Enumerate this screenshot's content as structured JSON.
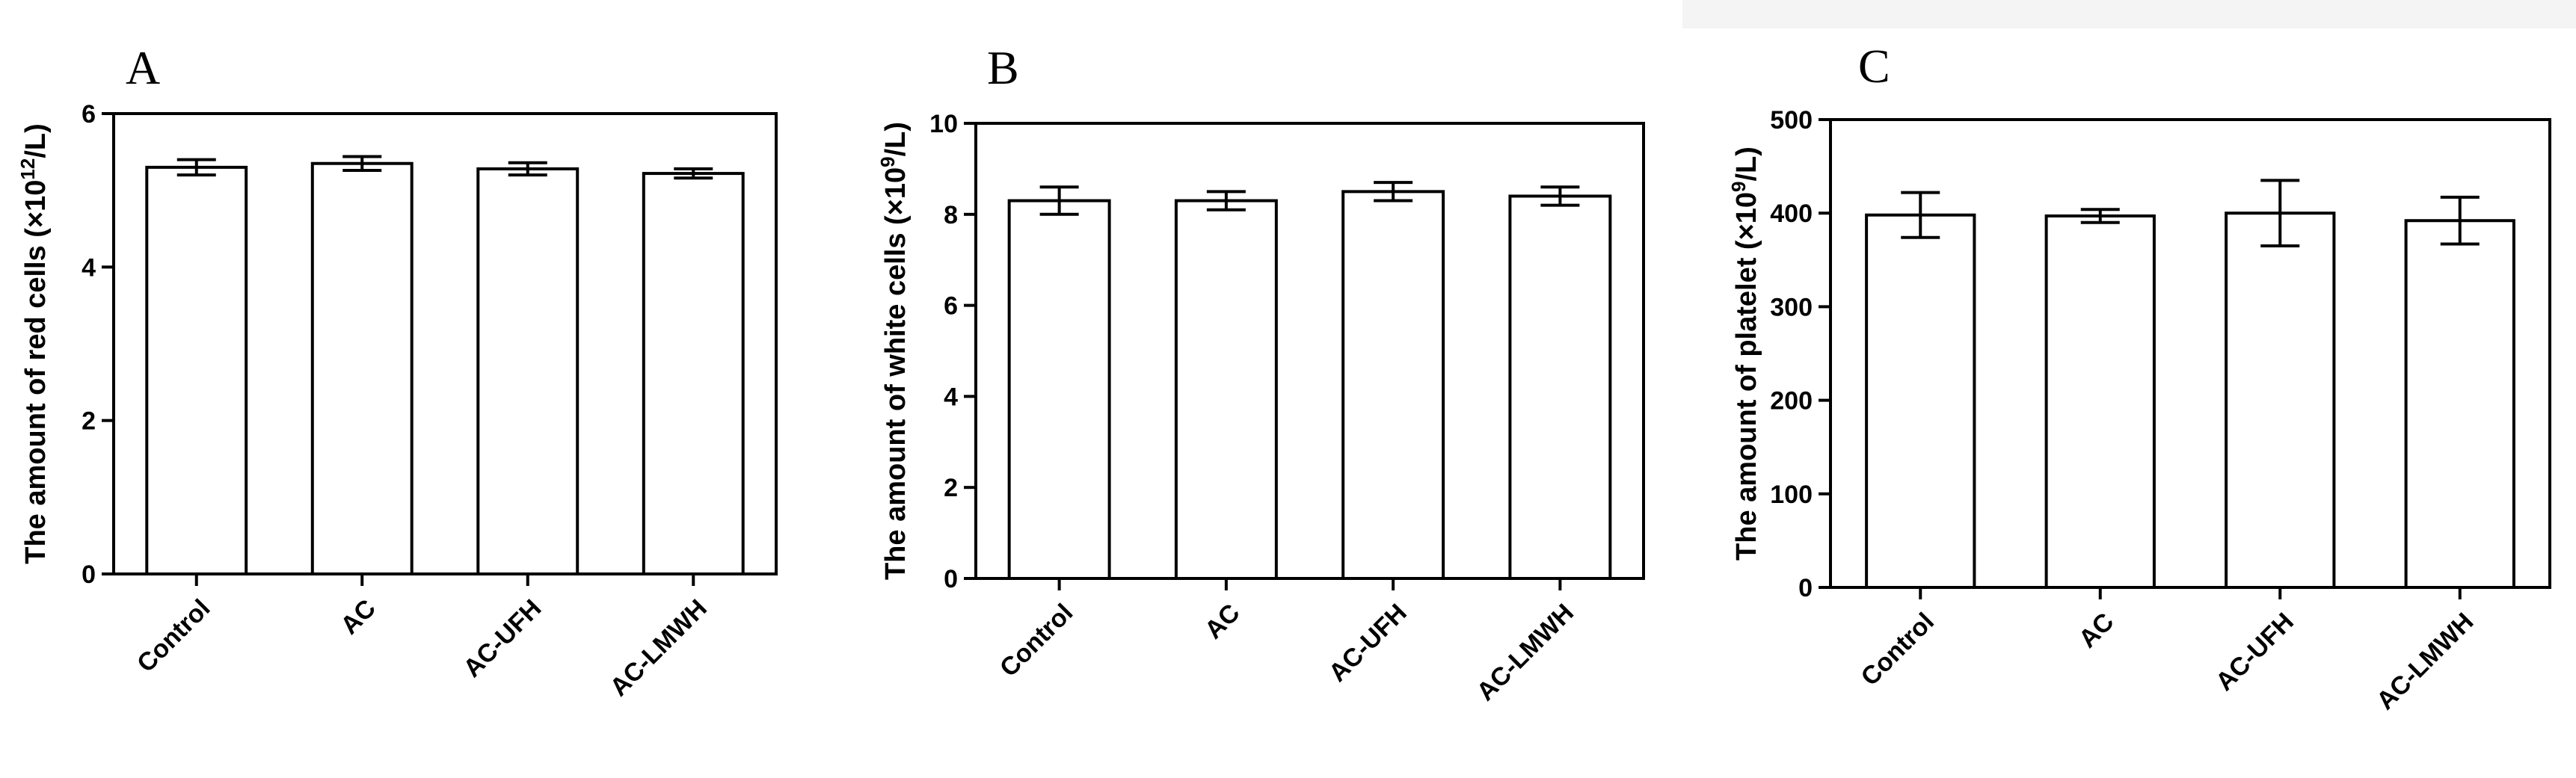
{
  "chart_data": [
    {
      "type": "bar",
      "panel": "A",
      "categories": [
        "Control",
        "AC",
        "AC-UFH",
        "AC-LMWH"
      ],
      "values": [
        5.3,
        5.35,
        5.28,
        5.22
      ],
      "errors": [
        0.1,
        0.09,
        0.08,
        0.06
      ],
      "ylabel_main": "The amount of red cells (×10",
      "ylabel_sup": "12",
      "ylabel_tail": "/L)",
      "ylim": [
        0,
        6
      ],
      "yticks": [
        0,
        2,
        4,
        6
      ],
      "grid": false
    },
    {
      "type": "bar",
      "panel": "B",
      "categories": [
        "Control",
        "AC",
        "AC-UFH",
        "AC-LMWH"
      ],
      "values": [
        8.3,
        8.3,
        8.5,
        8.4
      ],
      "errors": [
        0.3,
        0.2,
        0.2,
        0.2
      ],
      "ylabel_main": "The amount of white cells (×10",
      "ylabel_sup": "9",
      "ylabel_tail": "/L)",
      "ylim": [
        0,
        10
      ],
      "yticks": [
        0,
        2,
        4,
        6,
        8,
        10
      ],
      "grid": false
    },
    {
      "type": "bar",
      "panel": "C",
      "categories": [
        "Control",
        "AC",
        "AC-UFH",
        "AC-LMWH"
      ],
      "values": [
        398,
        397,
        400,
        392
      ],
      "errors": [
        24,
        7,
        35,
        25
      ],
      "ylabel_main": "The amount of platelet (×10",
      "ylabel_sup": "9",
      "ylabel_tail": "/L)",
      "ylim": [
        0,
        500
      ],
      "yticks": [
        0,
        100,
        200,
        300,
        400,
        500
      ],
      "grid": false
    }
  ]
}
